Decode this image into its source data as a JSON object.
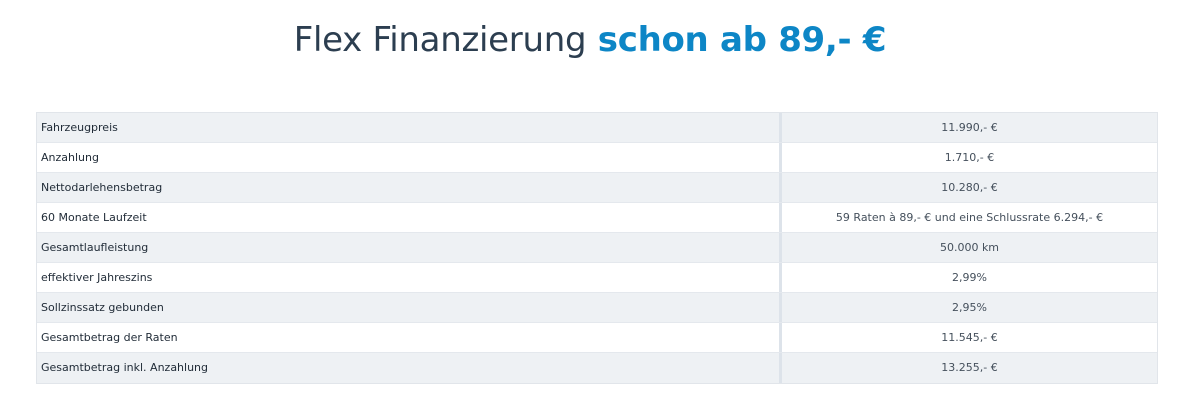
{
  "headline": {
    "plain": "Flex Finanzierung",
    "accent": "schon ab 89,- €"
  },
  "colors": {
    "accent": "#0d86c6",
    "row_shaded": "#eef1f4",
    "text": "#1f2a36"
  },
  "table": {
    "rows": [
      {
        "label": "Fahrzeugpreis",
        "value": "11.990,- €"
      },
      {
        "label": "Anzahlung",
        "value": "1.710,- €"
      },
      {
        "label": "Nettodarlehensbetrag",
        "value": "10.280,- €"
      },
      {
        "label": "60 Monate Laufzeit",
        "value": "59 Raten à 89,- € und eine Schlussrate 6.294,- €"
      },
      {
        "label": "Gesamtlaufleistung",
        "value": "50.000 km"
      },
      {
        "label": "effektiver Jahreszins",
        "value": "2,99%"
      },
      {
        "label": "Sollzinssatz gebunden",
        "value": "2,95%"
      },
      {
        "label": "Gesamtbetrag der Raten",
        "value": "11.545,- €"
      },
      {
        "label": "Gesamtbetrag inkl. Anzahlung",
        "value": "13.255,- €"
      }
    ]
  }
}
